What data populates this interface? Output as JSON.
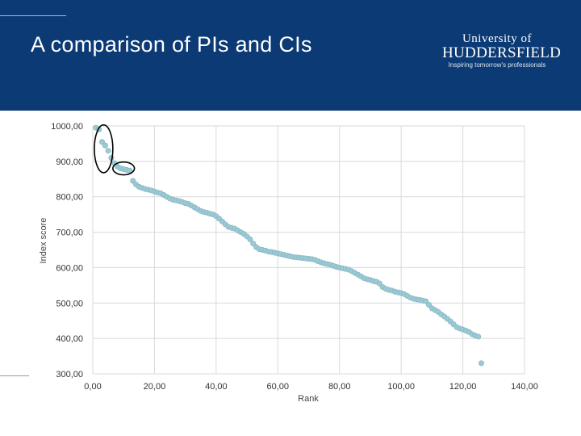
{
  "header": {
    "title": "A comparison of PIs and CIs",
    "logo": {
      "line1": "University of",
      "line2": "HUDDERSFIELD",
      "tagline": "Inspiring tomorrow's professionals"
    }
  },
  "colors": {
    "header_bg": "#0b3a75",
    "point": "#9cc9d4",
    "grid": "#d9d9d9",
    "circle": "#000000"
  },
  "chart_data": {
    "type": "scatter",
    "title": "",
    "xlabel": "Rank",
    "ylabel": "Index score",
    "xlim": [
      0,
      140
    ],
    "ylim": [
      300,
      1000
    ],
    "x_ticks": [
      0,
      20,
      40,
      60,
      80,
      100,
      120,
      140
    ],
    "y_ticks": [
      300,
      400,
      500,
      600,
      700,
      800,
      900,
      1000
    ],
    "x_tick_labels": [
      "0,00",
      "20,00",
      "40,00",
      "60,00",
      "80,00",
      "100,00",
      "120,00",
      "140,00"
    ],
    "y_tick_labels": [
      "300,00",
      "400,00",
      "500,00",
      "600,00",
      "700,00",
      "800,00",
      "900,00",
      "1000,00"
    ],
    "grid": true,
    "series": [
      {
        "name": "Index score",
        "points": [
          [
            1,
            995
          ],
          [
            2,
            990
          ],
          [
            3,
            955
          ],
          [
            4,
            945
          ],
          [
            5,
            930
          ],
          [
            6,
            910
          ],
          [
            7,
            895
          ],
          [
            8,
            885
          ],
          [
            9,
            880
          ],
          [
            10,
            878
          ],
          [
            11,
            876
          ],
          [
            12,
            874
          ],
          [
            13,
            845
          ],
          [
            14,
            835
          ],
          [
            15,
            828
          ],
          [
            16,
            825
          ],
          [
            17,
            822
          ],
          [
            18,
            820
          ],
          [
            19,
            818
          ],
          [
            20,
            815
          ],
          [
            21,
            812
          ],
          [
            22,
            810
          ],
          [
            23,
            805
          ],
          [
            24,
            800
          ],
          [
            25,
            795
          ],
          [
            26,
            792
          ],
          [
            27,
            790
          ],
          [
            28,
            788
          ],
          [
            29,
            785
          ],
          [
            30,
            782
          ],
          [
            31,
            780
          ],
          [
            32,
            775
          ],
          [
            33,
            770
          ],
          [
            34,
            765
          ],
          [
            35,
            760
          ],
          [
            36,
            757
          ],
          [
            37,
            755
          ],
          [
            38,
            752
          ],
          [
            39,
            750
          ],
          [
            40,
            745
          ],
          [
            41,
            738
          ],
          [
            42,
            730
          ],
          [
            43,
            722
          ],
          [
            44,
            715
          ],
          [
            45,
            712
          ],
          [
            46,
            710
          ],
          [
            47,
            705
          ],
          [
            48,
            700
          ],
          [
            49,
            695
          ],
          [
            50,
            688
          ],
          [
            51,
            680
          ],
          [
            52,
            668
          ],
          [
            53,
            658
          ],
          [
            54,
            652
          ],
          [
            55,
            650
          ],
          [
            56,
            648
          ],
          [
            57,
            645
          ],
          [
            58,
            644
          ],
          [
            59,
            642
          ],
          [
            60,
            640
          ],
          [
            61,
            638
          ],
          [
            62,
            636
          ],
          [
            63,
            634
          ],
          [
            64,
            632
          ],
          [
            65,
            630
          ],
          [
            66,
            629
          ],
          [
            67,
            628
          ],
          [
            68,
            627
          ],
          [
            69,
            626
          ],
          [
            70,
            625
          ],
          [
            71,
            624
          ],
          [
            72,
            622
          ],
          [
            73,
            618
          ],
          [
            74,
            615
          ],
          [
            75,
            612
          ],
          [
            76,
            610
          ],
          [
            77,
            608
          ],
          [
            78,
            605
          ],
          [
            79,
            602
          ],
          [
            80,
            600
          ],
          [
            81,
            598
          ],
          [
            82,
            596
          ],
          [
            83,
            594
          ],
          [
            84,
            590
          ],
          [
            85,
            585
          ],
          [
            86,
            580
          ],
          [
            87,
            575
          ],
          [
            88,
            570
          ],
          [
            89,
            567
          ],
          [
            90,
            565
          ],
          [
            91,
            562
          ],
          [
            92,
            560
          ],
          [
            93,
            555
          ],
          [
            94,
            545
          ],
          [
            95,
            540
          ],
          [
            96,
            537
          ],
          [
            97,
            535
          ],
          [
            98,
            532
          ],
          [
            99,
            530
          ],
          [
            100,
            528
          ],
          [
            101,
            525
          ],
          [
            102,
            520
          ],
          [
            103,
            515
          ],
          [
            104,
            512
          ],
          [
            105,
            510
          ],
          [
            106,
            509
          ],
          [
            107,
            507
          ],
          [
            108,
            505
          ],
          [
            109,
            495
          ],
          [
            110,
            485
          ],
          [
            111,
            480
          ],
          [
            112,
            475
          ],
          [
            113,
            468
          ],
          [
            114,
            462
          ],
          [
            115,
            455
          ],
          [
            116,
            448
          ],
          [
            117,
            440
          ],
          [
            118,
            432
          ],
          [
            119,
            428
          ],
          [
            120,
            425
          ],
          [
            121,
            422
          ],
          [
            122,
            418
          ],
          [
            123,
            412
          ],
          [
            124,
            408
          ],
          [
            125,
            405
          ],
          [
            126,
            330
          ]
        ]
      }
    ],
    "annotations": [
      {
        "shape": "ellipse",
        "x_range": [
          0.5,
          6.5
        ],
        "y_range": [
          868,
          1003
        ],
        "note": "highlighted top outliers"
      },
      {
        "shape": "ellipse",
        "x_range": [
          6.5,
          13.5
        ],
        "y_range": [
          862,
          898
        ],
        "note": "highlighted cluster"
      }
    ]
  }
}
